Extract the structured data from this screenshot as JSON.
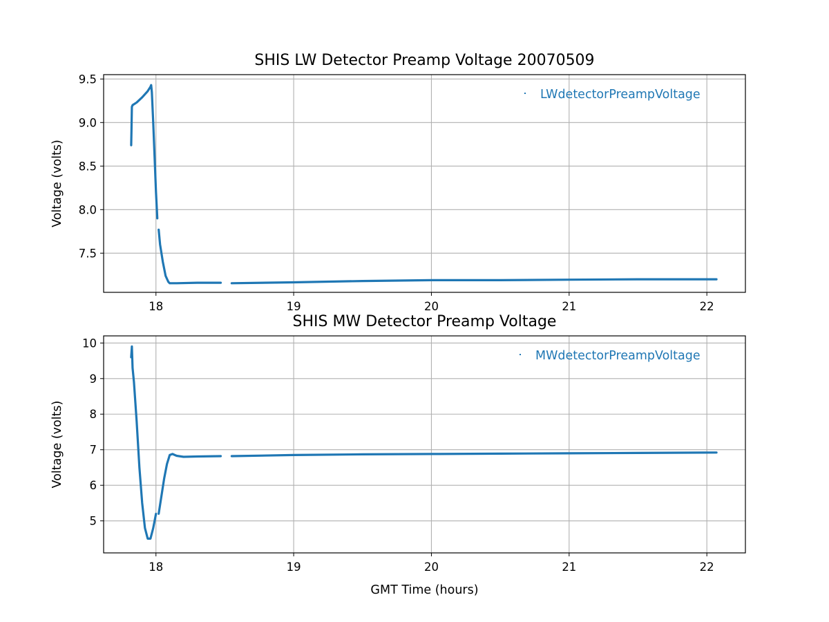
{
  "chart_data": [
    {
      "type": "scatter",
      "title": "SHIS LW Detector Preamp Voltage 20070509",
      "xlabel": "",
      "ylabel": "Voltage (volts)",
      "xlim": [
        17.62,
        22.28
      ],
      "ylim": [
        7.05,
        9.55
      ],
      "xticks": [
        18,
        19,
        20,
        21,
        22
      ],
      "yticks": [
        7.5,
        8.0,
        8.5,
        9.0,
        9.5
      ],
      "ytick_labels": [
        "7.5",
        "8.0",
        "8.5",
        "9.0",
        "9.5"
      ],
      "grid": true,
      "legend_position": "top-right",
      "color": "#1f77b4",
      "series": [
        {
          "name": "LWdetectorPreampVoltage",
          "segments": [
            [
              [
                17.82,
                8.74
              ],
              [
                17.822,
                8.9
              ],
              [
                17.825,
                9.18
              ],
              [
                17.83,
                9.2
              ],
              [
                17.86,
                9.23
              ],
              [
                17.9,
                9.29
              ],
              [
                17.94,
                9.36
              ],
              [
                17.96,
                9.41
              ],
              [
                17.965,
                9.43
              ],
              [
                17.97,
                9.35
              ],
              [
                17.98,
                9.0
              ],
              [
                17.99,
                8.6
              ],
              [
                18.0,
                8.2
              ],
              [
                18.01,
                7.9
              ]
            ],
            [
              [
                18.02,
                7.77
              ],
              [
                18.03,
                7.6
              ],
              [
                18.05,
                7.4
              ],
              [
                18.07,
                7.24
              ],
              [
                18.09,
                7.17
              ],
              [
                18.1,
                7.155
              ],
              [
                18.15,
                7.155
              ],
              [
                18.3,
                7.16
              ],
              [
                18.47,
                7.16
              ]
            ],
            [
              [
                18.55,
                7.155
              ],
              [
                19.0,
                7.165
              ],
              [
                19.5,
                7.18
              ],
              [
                20.0,
                7.19
              ],
              [
                20.5,
                7.19
              ],
              [
                21.0,
                7.195
              ],
              [
                21.5,
                7.2
              ],
              [
                22.07,
                7.2
              ]
            ]
          ]
        }
      ]
    },
    {
      "type": "scatter",
      "title": "SHIS MW Detector Preamp Voltage",
      "xlabel": "GMT Time (hours)",
      "ylabel": "Voltage (volts)",
      "xlim": [
        17.62,
        22.28
      ],
      "ylim": [
        4.1,
        10.2
      ],
      "xticks": [
        18,
        19,
        20,
        21,
        22
      ],
      "yticks": [
        5,
        6,
        7,
        8,
        9,
        10
      ],
      "ytick_labels": [
        "5",
        "6",
        "7",
        "8",
        "9",
        "10"
      ],
      "grid": true,
      "legend_position": "top-right",
      "color": "#1f77b4",
      "series": [
        {
          "name": "MWdetectorPreampVoltage",
          "segments": [
            [
              [
                17.82,
                9.6
              ],
              [
                17.825,
                9.9
              ],
              [
                17.83,
                9.3
              ],
              [
                17.84,
                8.9
              ],
              [
                17.86,
                7.8
              ],
              [
                17.88,
                6.5
              ],
              [
                17.9,
                5.5
              ],
              [
                17.92,
                4.8
              ],
              [
                17.94,
                4.5
              ],
              [
                17.96,
                4.5
              ],
              [
                17.98,
                4.8
              ],
              [
                18.0,
                5.2
              ]
            ],
            [
              [
                18.02,
                5.2
              ],
              [
                18.04,
                5.7
              ],
              [
                18.06,
                6.2
              ],
              [
                18.08,
                6.6
              ],
              [
                18.1,
                6.85
              ],
              [
                18.12,
                6.88
              ],
              [
                18.15,
                6.83
              ],
              [
                18.2,
                6.8
              ],
              [
                18.3,
                6.81
              ],
              [
                18.47,
                6.82
              ]
            ],
            [
              [
                18.55,
                6.82
              ],
              [
                19.0,
                6.85
              ],
              [
                19.5,
                6.87
              ],
              [
                20.0,
                6.88
              ],
              [
                20.5,
                6.89
              ],
              [
                21.0,
                6.9
              ],
              [
                21.5,
                6.91
              ],
              [
                22.07,
                6.92
              ]
            ]
          ]
        }
      ]
    }
  ],
  "xtick_labels": [
    "18",
    "19",
    "20",
    "21",
    "22"
  ]
}
